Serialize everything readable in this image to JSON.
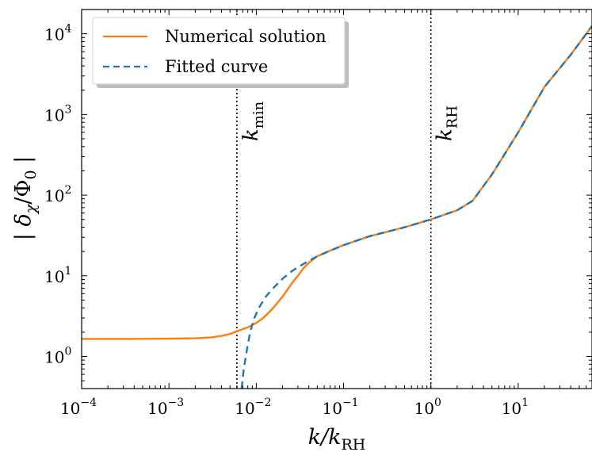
{
  "chart_data": {
    "type": "line",
    "x_scale": "log",
    "y_scale": "log",
    "xlim": [
      0.0001,
      70
    ],
    "ylim": [
      0.4,
      20000
    ],
    "xlabel": {
      "main": "k/k",
      "sub": "RH"
    },
    "ylabel": {
      "main": "| δ",
      "sub": "χ",
      "rest": "/Φ",
      "sub2": "0",
      "end": " |"
    },
    "x_ticks": [
      {
        "base": "10",
        "exp": "−4",
        "value": 0.0001
      },
      {
        "base": "10",
        "exp": "−3",
        "value": 0.001
      },
      {
        "base": "10",
        "exp": "−2",
        "value": 0.01
      },
      {
        "base": "10",
        "exp": "−1",
        "value": 0.1
      },
      {
        "base": "10",
        "exp": "0",
        "value": 1
      },
      {
        "base": "10",
        "exp": "1",
        "value": 10
      }
    ],
    "y_ticks": [
      {
        "base": "10",
        "exp": "0",
        "value": 1
      },
      {
        "base": "10",
        "exp": "1",
        "value": 10
      },
      {
        "base": "10",
        "exp": "2",
        "value": 100
      },
      {
        "base": "10",
        "exp": "3",
        "value": 1000
      },
      {
        "base": "10",
        "exp": "4",
        "value": 10000
      }
    ],
    "vlines": [
      {
        "x": 0.006,
        "label_main": "k",
        "label_sub": "min"
      },
      {
        "x": 1.0,
        "label_main": "k",
        "label_sub": "RH"
      }
    ],
    "series": [
      {
        "name": "Numerical solution",
        "color": "#ff7f0e",
        "style": "solid",
        "x": [
          0.0001,
          0.0003,
          0.001,
          0.002,
          0.003,
          0.004,
          0.005,
          0.006,
          0.008,
          0.01,
          0.012,
          0.015,
          0.02,
          0.025,
          0.03,
          0.035,
          0.04,
          0.05,
          0.07,
          0.1,
          0.2,
          0.5,
          1,
          2,
          3,
          5,
          10,
          20,
          40,
          70
        ],
        "y": [
          1.65,
          1.65,
          1.66,
          1.68,
          1.72,
          1.8,
          1.9,
          2.05,
          2.3,
          2.6,
          3.0,
          3.8,
          5.5,
          7.8,
          10,
          12.5,
          14.5,
          17.5,
          20.5,
          24,
          31,
          40,
          50,
          65,
          85,
          180,
          600,
          2200,
          5500,
          12500
        ]
      },
      {
        "name": "Fitted curve",
        "color": "#1f77b4",
        "style": "dashed",
        "x": [
          0.0068,
          0.0072,
          0.0078,
          0.0085,
          0.0095,
          0.011,
          0.013,
          0.016,
          0.02,
          0.025,
          0.03,
          0.04,
          0.05,
          0.07,
          0.1,
          0.2,
          0.5,
          1,
          2,
          3,
          5,
          10,
          20,
          40,
          70
        ],
        "y": [
          0.4,
          0.7,
          1.2,
          2.0,
          3.0,
          4.2,
          5.6,
          7.2,
          9.2,
          11.2,
          12.8,
          15.3,
          17.5,
          20.5,
          24,
          31,
          40,
          50,
          65,
          85,
          180,
          600,
          2200,
          5500,
          12500
        ]
      }
    ],
    "legend": {
      "placement": "top-left"
    }
  }
}
